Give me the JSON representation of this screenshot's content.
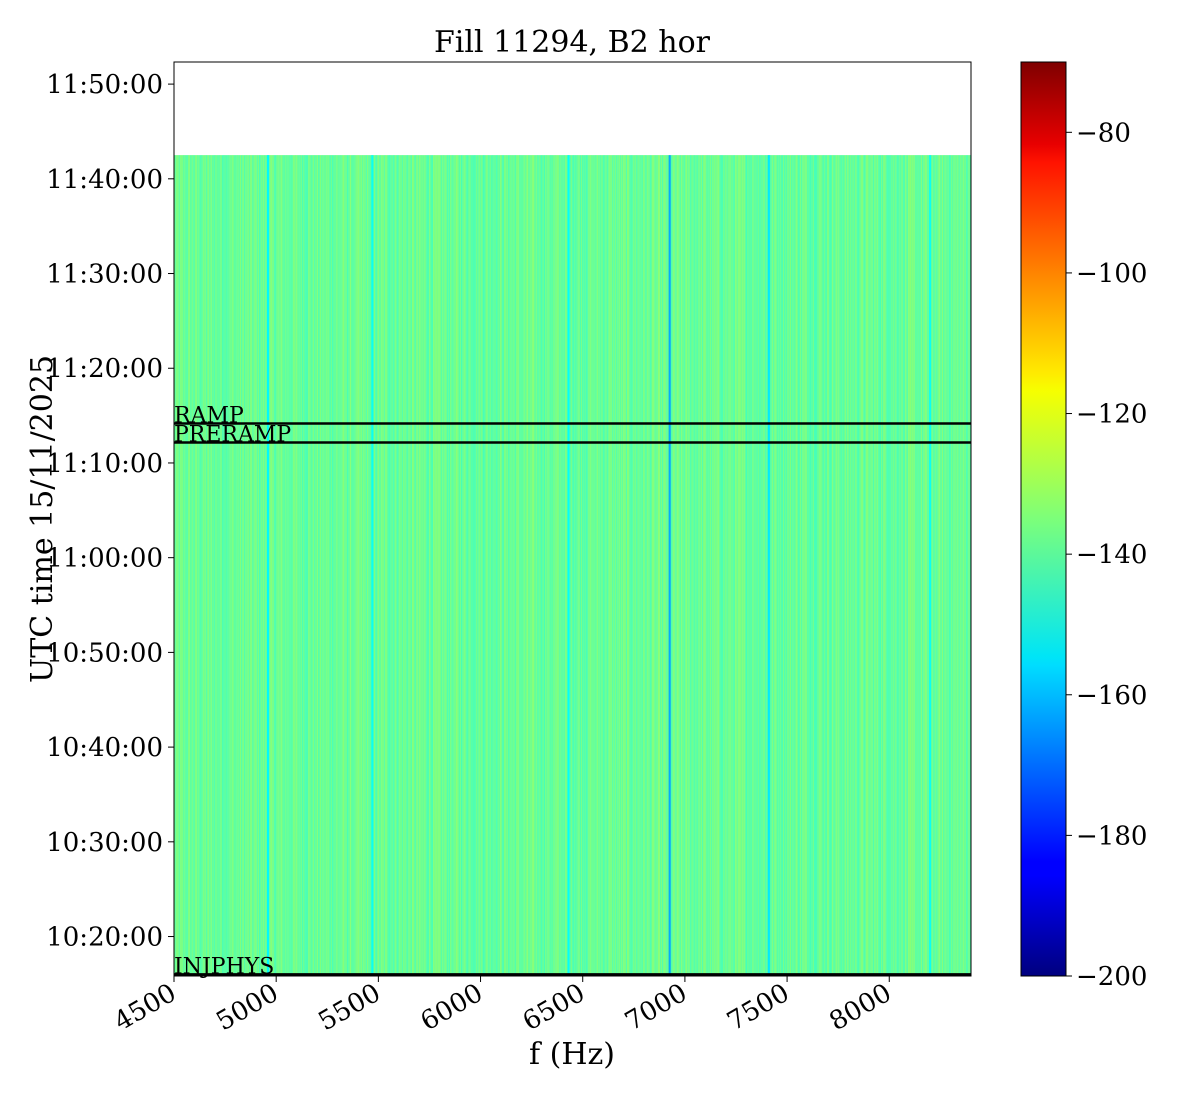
{
  "chart_data": {
    "type": "heatmap",
    "title": "Fill 11294, B2 hor",
    "xlabel": "f (Hz)",
    "ylabel": "UTC time 15/11/2025",
    "xlim": [
      4500,
      8400
    ],
    "ylim": [
      "10:15:50",
      "11:52:20"
    ],
    "x_ticks": [
      4500,
      5000,
      5500,
      6000,
      6500,
      7000,
      7500,
      8000
    ],
    "y_ticks": [
      "10:20:00",
      "10:30:00",
      "10:40:00",
      "10:50:00",
      "11:00:00",
      "11:10:00",
      "11:20:00",
      "11:30:00",
      "11:40:00",
      "11:50:00"
    ],
    "data_extent": {
      "f_range_hz": [
        4500,
        8400
      ],
      "time_range": [
        "10:15:50",
        "11:42:30"
      ]
    },
    "colormap": "jet",
    "colorbar": {
      "range": [
        -200,
        -70
      ],
      "ticks": [
        -200,
        -180,
        -160,
        -140,
        -120,
        -100,
        -80
      ],
      "tick_labels": [
        "−200",
        "−180",
        "−160",
        "−140",
        "−120",
        "−100",
        "−80"
      ]
    },
    "typical_value": -138,
    "spectral_lines": [
      {
        "f_hz": 4960,
        "value": -152
      },
      {
        "f_hz": 5470,
        "value": -150
      },
      {
        "f_hz": 6430,
        "value": -151
      },
      {
        "f_hz": 6925,
        "value": -162
      },
      {
        "f_hz": 7410,
        "value": -154
      },
      {
        "f_hz": 8200,
        "value": -150
      }
    ],
    "phase_markers": [
      {
        "label": "RAMP",
        "time": "11:14:10"
      },
      {
        "label": "PRERAMP",
        "time": "11:12:10"
      },
      {
        "label": "INJPHYS",
        "time": "10:16:00"
      }
    ],
    "grid": false,
    "legend": "none"
  }
}
